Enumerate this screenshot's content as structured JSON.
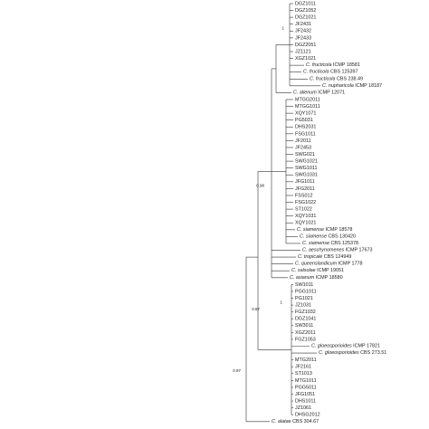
{
  "tree": {
    "leaves": [
      "DGZ1011",
      "DGZ1052",
      "DGZ1021",
      "JF2431",
      "JF2432",
      "JF2433",
      "DGZ2051",
      "JZ1121",
      "XGZ1021",
      {
        "species": "C. fructicola",
        "strain": "ICMP 18581"
      },
      {
        "species": "C. fructicola",
        "strain": "CBS 125397"
      },
      {
        "species": "C. fructicola",
        "strain": "CBS 238.49"
      },
      {
        "species": "C. nupharicola",
        "strain": "ICMP 18187"
      },
      {
        "species": "C. alienum",
        "strain": "ICMP 12071"
      },
      "MTGG2011",
      "MTGG1011",
      "XQY1071",
      "PG5031",
      "DHS2031",
      "FSG1011",
      "JF2011",
      "JF2453",
      "SWG021",
      "SWG1021",
      "SWG1011",
      "SWG1031",
      "JFG1011",
      "JFG2011",
      "FSS012",
      "FSG1022",
      "ST1022",
      "XQY1031",
      "XQY1021",
      {
        "species": "C. siamense",
        "strain": "ICMP 18578"
      },
      {
        "species": "C. siamense",
        "strain": "CBS 130420"
      },
      {
        "species": "C. siamense",
        "strain": "CBS 125378"
      },
      {
        "species": "C. aeschynomenes",
        "strain": "ICMP 17673"
      },
      {
        "species": "C. tropicale",
        "strain": "CBS 124949"
      },
      {
        "species": "C. queenslandicum",
        "strain": "ICMP 1778"
      },
      {
        "species": "C. salsolae",
        "strain": "ICMP 19051"
      },
      {
        "species": "C. asianum",
        "strain": "ICMP 18580"
      },
      "SW1011",
      "PGG1011",
      "PG1021",
      "JZ1031",
      "FGZ1032",
      "DGZ1041",
      "SW3011",
      "XGZ2011",
      "FGZ1053",
      {
        "species": "C. gloeosporioides",
        "strain": "ICMP 17821"
      },
      {
        "species": "C. gloeosporioides",
        "strain": "CBS 273.51"
      },
      "MTG2011",
      "JF2161",
      "ST1013",
      "MTG1011",
      "PGG5011",
      "JFG1051",
      "DHS1011",
      "JZ1061",
      "DHSG2012",
      {
        "species": "C. alatae",
        "strain": "CBS 304.67"
      }
    ],
    "supports": [
      1,
      1,
      0.98,
      0.87,
      0.97
    ]
  }
}
